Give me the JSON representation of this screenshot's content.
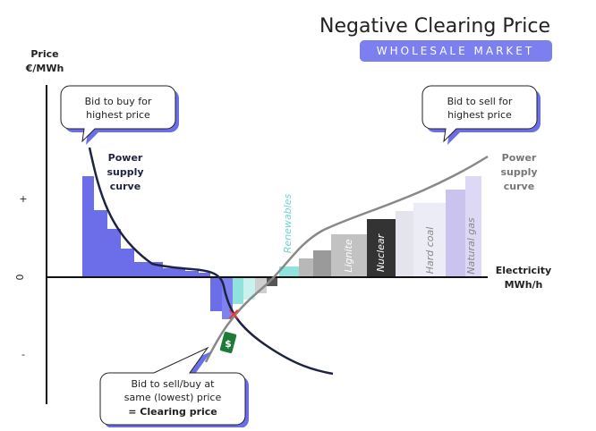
{
  "header": {
    "title": "Negative Clearing Price",
    "badge": "WHOLESALE MARKET"
  },
  "y_axis": {
    "label": "Price",
    "unit": "€/MWh",
    "plus": "+",
    "zero": "0",
    "minus": "-"
  },
  "x_axis": {
    "label": "Electricity",
    "unit": "MWh/h"
  },
  "callouts": {
    "buy": [
      "Bid to buy for",
      "highest price"
    ],
    "sell": [
      "Bid to sell for",
      "highest price"
    ],
    "clearing": [
      "Bid to sell/buy at",
      "same (lowest) price",
      "= Clearing price"
    ]
  },
  "curve_labels": {
    "left": [
      "Power",
      "supply",
      "curve"
    ],
    "right": [
      "Power",
      "supply",
      "curve"
    ]
  },
  "sources": [
    "Renewables",
    "Lignite",
    "Nuclear",
    "Hard coal",
    "Natural gas"
  ],
  "tag": "$"
}
